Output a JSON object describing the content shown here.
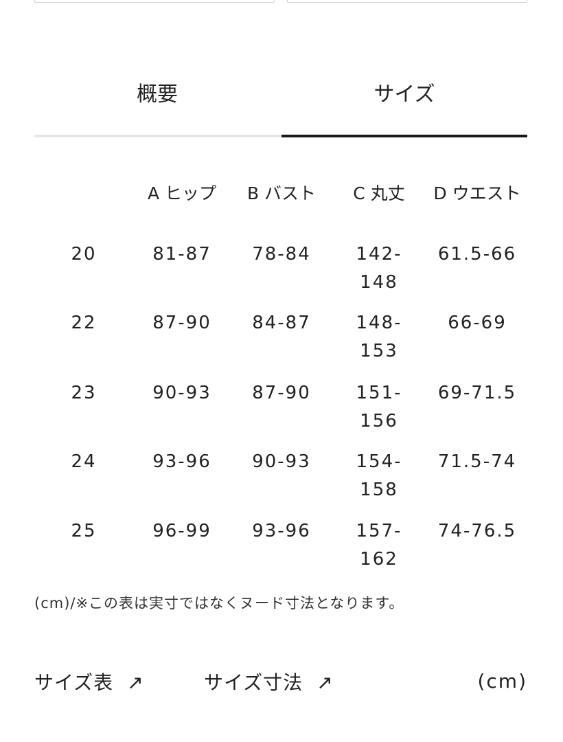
{
  "tabs": [
    {
      "label": "概要",
      "active": false
    },
    {
      "label": "サイズ",
      "active": true
    }
  ],
  "colors": {
    "active_tab_line": "#1a1a1a",
    "inactive_tab_line": "#e8e8e8"
  },
  "table": {
    "headers": [
      "",
      "A ヒップ",
      "B バスト",
      "C 丸丈",
      "D ウエスト"
    ],
    "rows": [
      [
        "20",
        "81-87",
        "78-84",
        "142-148",
        "61.5-66"
      ],
      [
        "22",
        "87-90",
        "84-87",
        "148-153",
        "66-69"
      ],
      [
        "23",
        "90-93",
        "87-90",
        "151-156",
        "69-71.5"
      ],
      [
        "24",
        "93-96",
        "90-93",
        "154-158",
        "71.5-74"
      ],
      [
        "25",
        "96-99",
        "93-96",
        "157-162",
        "74-76.5"
      ]
    ]
  },
  "note": "(cm)/※この表は実寸ではなくヌード寸法となります。",
  "links": [
    {
      "label": "サイズ表",
      "icon": "arrow-up-right-icon"
    },
    {
      "label": "サイズ寸法",
      "icon": "arrow-up-right-icon"
    }
  ],
  "unit": "(cm)"
}
